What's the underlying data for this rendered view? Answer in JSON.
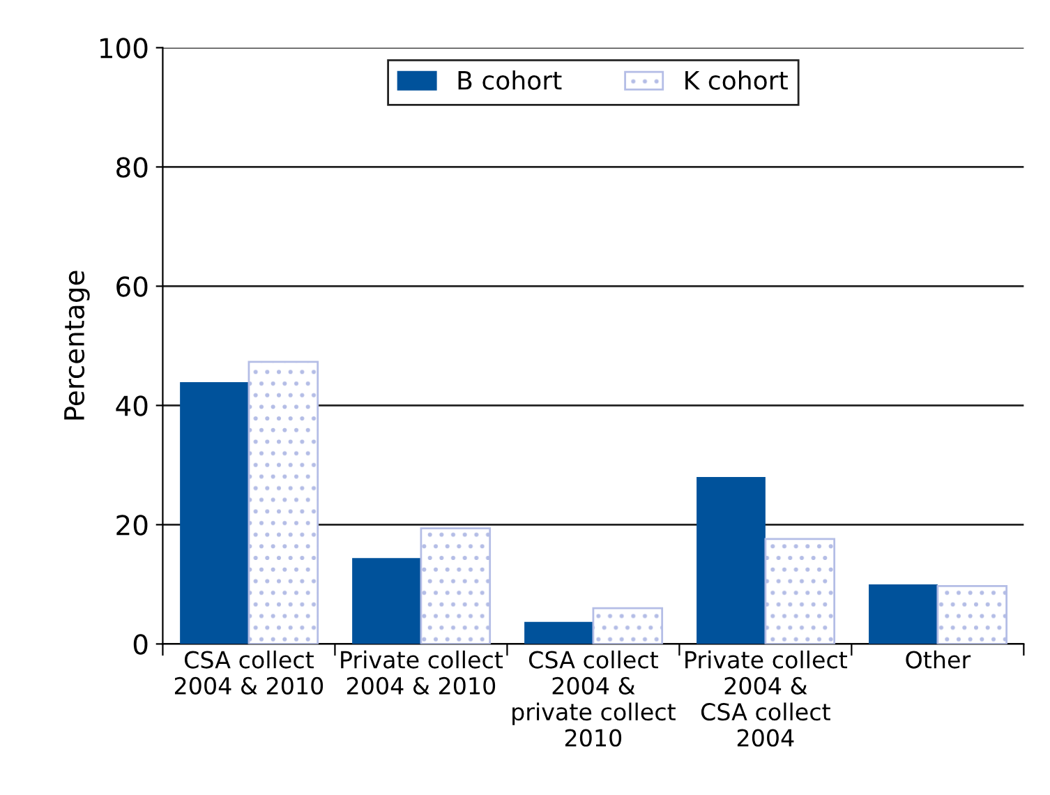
{
  "chart_data": {
    "type": "bar",
    "ylabel": "Percentage",
    "categories": [
      "CSA collect\n2004 & 2010",
      "Private collect\n2004 & 2010",
      "CSA collect\n2004 &\nprivate collect\n2010",
      "Private collect\n2004 &\nCSA collect\n2004",
      "Other"
    ],
    "series": [
      {
        "name": "B cohort",
        "color": "#00529b",
        "values": [
          43.9,
          14.4,
          3.7,
          28.0,
          10.0
        ]
      },
      {
        "name": "K cohort",
        "color": "#b4bde6",
        "values": [
          47.3,
          19.4,
          6.0,
          17.6,
          9.7
        ]
      }
    ],
    "ylim": [
      0,
      100
    ],
    "yticks": [
      0,
      20,
      40,
      60,
      80,
      100
    ],
    "grid": "y",
    "legend": "top"
  }
}
